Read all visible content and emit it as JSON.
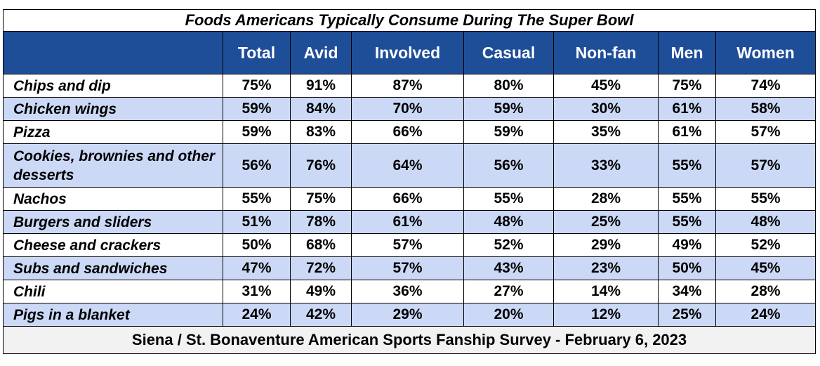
{
  "chart_data": {
    "type": "table",
    "title": "Foods Americans Typically Consume During The Super Bowl",
    "columns": [
      "",
      "Total",
      "Avid",
      "Involved",
      "Casual",
      "Non-fan",
      "Men",
      "Women"
    ],
    "rows": [
      {
        "label": "Chips and dip",
        "values": [
          "75%",
          "91%",
          "87%",
          "80%",
          "45%",
          "75%",
          "74%"
        ]
      },
      {
        "label": "Chicken wings",
        "values": [
          "59%",
          "84%",
          "70%",
          "59%",
          "30%",
          "61%",
          "58%"
        ]
      },
      {
        "label": "Pizza",
        "values": [
          "59%",
          "83%",
          "66%",
          "59%",
          "35%",
          "61%",
          "57%"
        ]
      },
      {
        "label": "Cookies, brownies and other desserts",
        "values": [
          "56%",
          "76%",
          "64%",
          "56%",
          "33%",
          "55%",
          "57%"
        ]
      },
      {
        "label": "Nachos",
        "values": [
          "55%",
          "75%",
          "66%",
          "55%",
          "28%",
          "55%",
          "55%"
        ]
      },
      {
        "label": "Burgers and sliders",
        "values": [
          "51%",
          "78%",
          "61%",
          "48%",
          "25%",
          "55%",
          "48%"
        ]
      },
      {
        "label": "Cheese and crackers",
        "values": [
          "50%",
          "68%",
          "57%",
          "52%",
          "29%",
          "49%",
          "52%"
        ]
      },
      {
        "label": "Subs and sandwiches",
        "values": [
          "47%",
          "72%",
          "57%",
          "43%",
          "23%",
          "50%",
          "45%"
        ]
      },
      {
        "label": "Chili",
        "values": [
          "31%",
          "49%",
          "36%",
          "27%",
          "14%",
          "34%",
          "28%"
        ]
      },
      {
        "label": "Pigs in a blanket",
        "values": [
          "24%",
          "42%",
          "29%",
          "20%",
          "12%",
          "25%",
          "24%"
        ]
      }
    ],
    "footer": "Siena / St. Bonaventure American Sports Fanship Survey - February 6, 2023"
  },
  "colors": {
    "header_bg": "#1f4e99",
    "header_text": "#ffffff",
    "alt_row_bg": "#ccd9f6",
    "plain_row_bg": "#ffffff",
    "footer_bg": "#f2f2f2"
  }
}
